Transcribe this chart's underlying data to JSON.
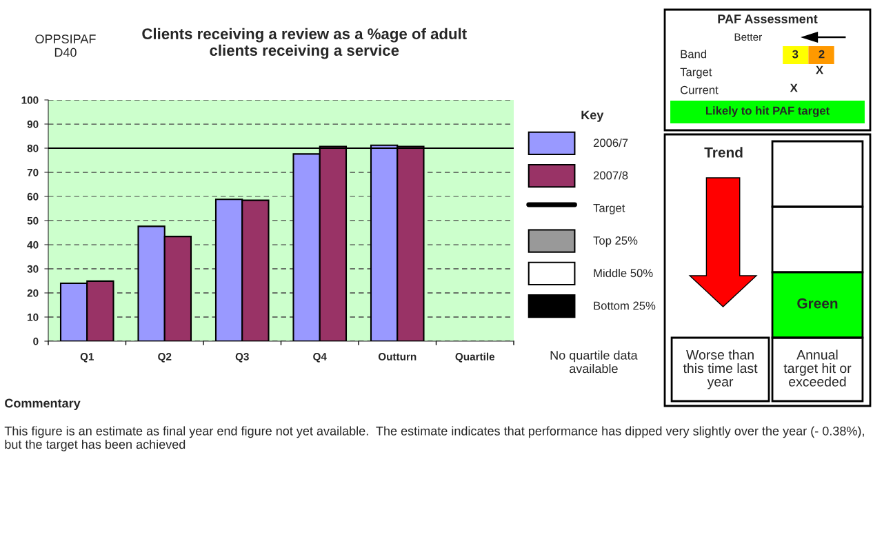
{
  "chart_data": [
    {
      "type": "bar",
      "title": "Clients receiving a review as a %age of adult\nclients receiving a service",
      "legend_title": "Key",
      "categories": [
        "Q1",
        "Q2",
        "Q3",
        "Q4",
        "Outturn",
        "Quartile"
      ],
      "series": [
        {
          "name": "2006/7",
          "color": "#9999ff",
          "values": [
            24.0,
            47.6,
            58.8,
            77.6,
            81.2,
            null
          ]
        },
        {
          "name": "2007/8",
          "color": "#993366",
          "values": [
            24.9,
            43.4,
            58.4,
            80.7,
            80.7,
            null
          ]
        },
        {
          "name": "Top 25%",
          "color": "#999999",
          "values": [
            null,
            null,
            null,
            null,
            null,
            null
          ]
        },
        {
          "name": "Middle 50%",
          "color": "#ffffff",
          "values": [
            null,
            null,
            null,
            null,
            null,
            null
          ]
        },
        {
          "name": "Bottom 25%",
          "color": "#000000",
          "values": [
            null,
            null,
            null,
            null,
            null,
            null
          ]
        }
      ],
      "ref_lines": [
        {
          "axis": "y",
          "value": 80,
          "label": "Target",
          "color": "#000000"
        }
      ],
      "ylim": [
        0,
        100
      ],
      "yticks": [
        0,
        10,
        20,
        30,
        40,
        50,
        60,
        70,
        80,
        90,
        100
      ],
      "grid": "y",
      "legend": "right",
      "annotations": [
        "OPPSIPAF\nD40",
        "No quartile data\navailable",
        "Commentary",
        "This figure is an estimate as final year end figure not yet available.  The estimate indicates that performance has dipped very slightly over the year (- 0.38%), but the target has been achieved"
      ]
    },
    {
      "type": "other",
      "annotations": [
        "PAF Assessment",
        "Better",
        "Band",
        "3",
        "2",
        "Target",
        "X",
        "Current",
        "X",
        "Likely to hit PAF target",
        "Trend",
        "Green",
        "Worse than\nthis time last\nyear",
        "Annual\ntarget hit or\nexceeded"
      ]
    }
  ]
}
